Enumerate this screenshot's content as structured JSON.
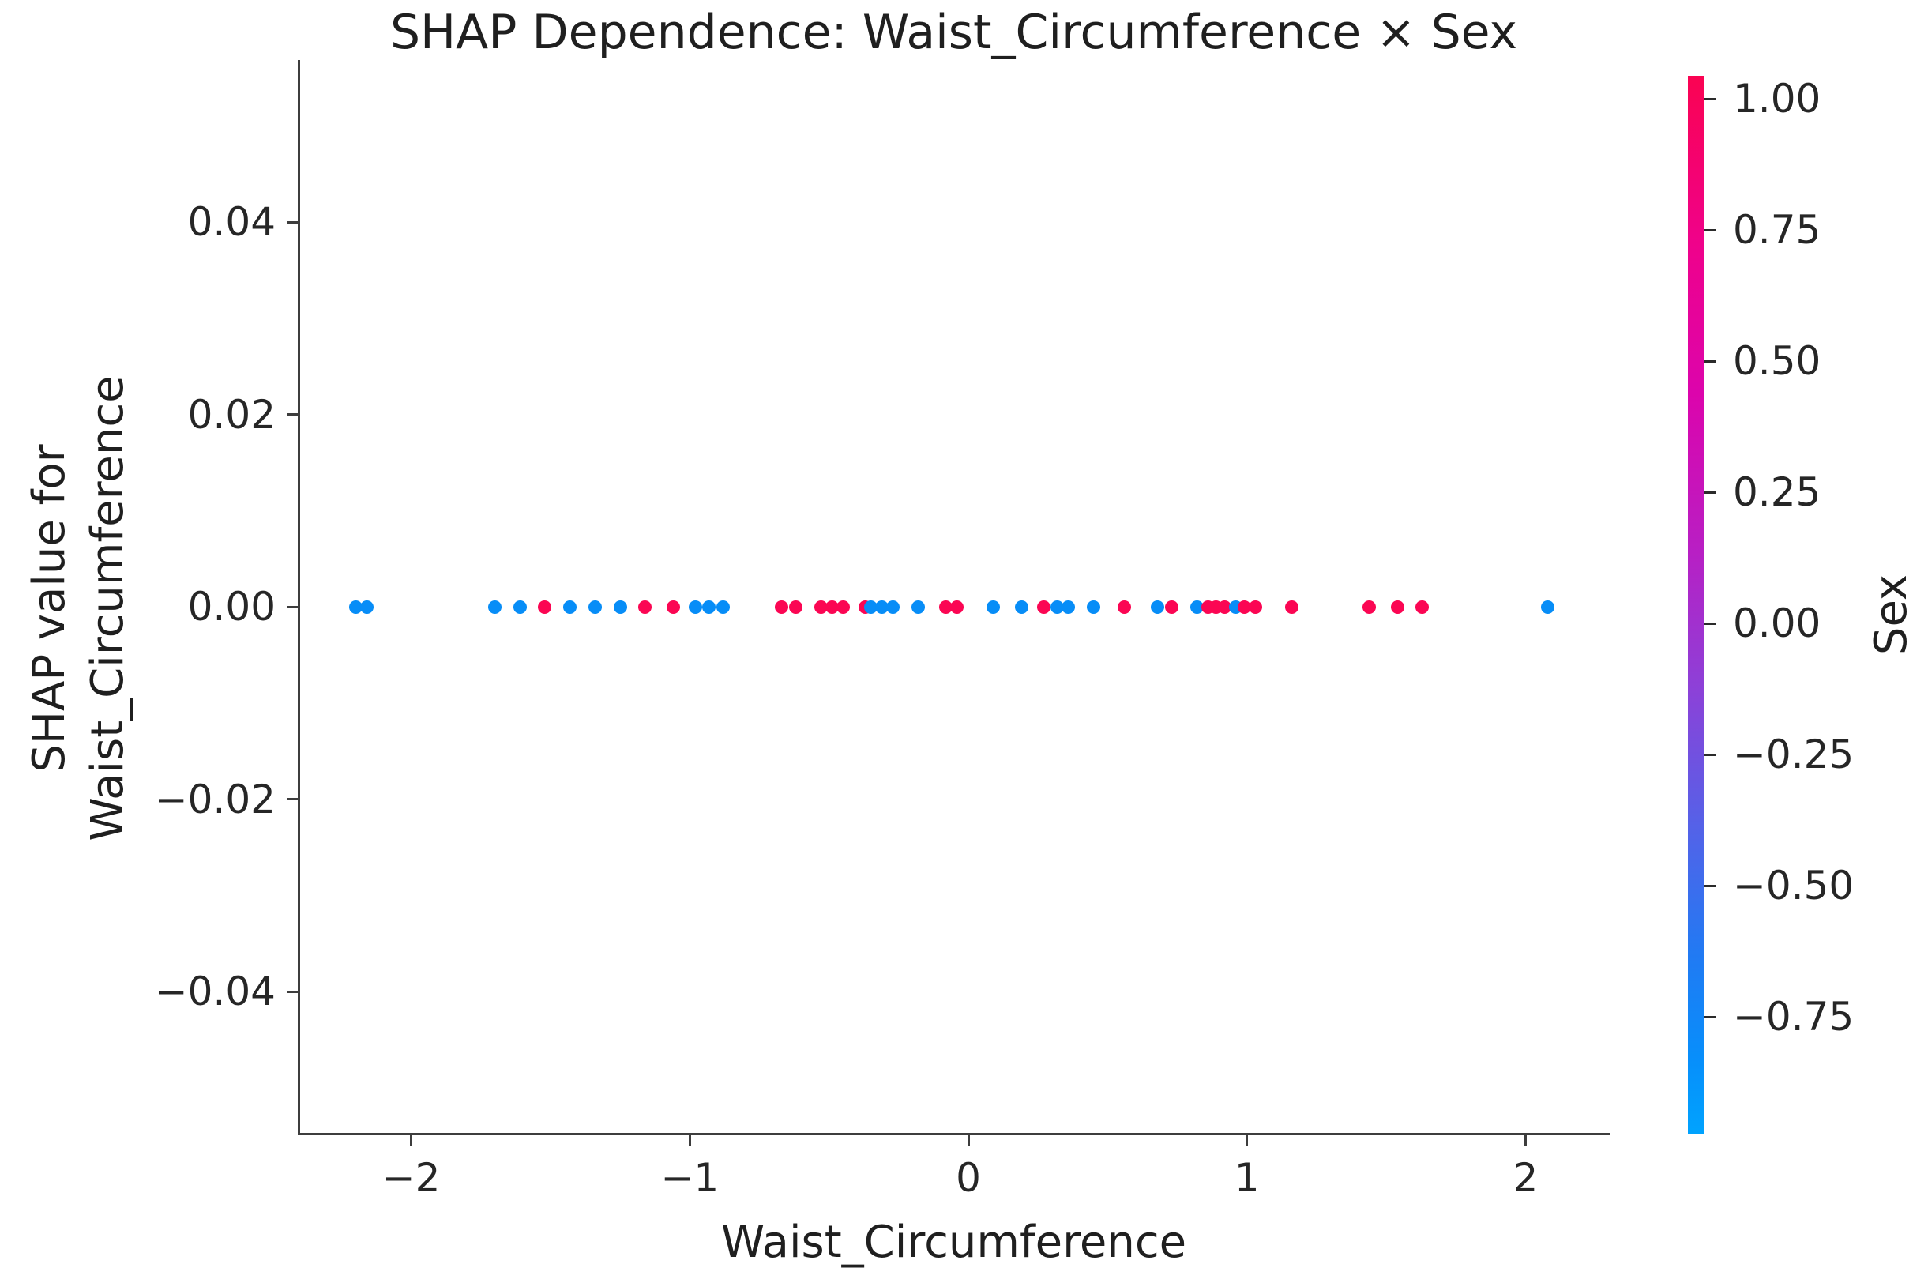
{
  "chart_data": {
    "type": "scatter",
    "title": "SHAP Dependence: Waist_Circumference × Sex",
    "xlabel": "Waist_Circumference",
    "ylabel_lines": [
      "SHAP value for",
      "Waist_Circumference"
    ],
    "x_ticks": [
      -2,
      -1,
      0,
      1,
      2
    ],
    "y_ticks": [
      0.04,
      0.02,
      0.0,
      -0.02,
      -0.04
    ],
    "xlim": [
      -2.41,
      2.3
    ],
    "ylim": [
      -0.055,
      0.057
    ],
    "grid": false,
    "legend": "colorbar-right",
    "marker_colors": {
      "high": "#fb0653",
      "low": "#078df7"
    },
    "colorbar": {
      "label": "Sex",
      "ticks": [
        1.0,
        0.75,
        0.5,
        0.25,
        0.0,
        -0.25,
        -0.5,
        -0.75
      ],
      "vmin": -0.974,
      "vmax": 1.044,
      "gradient_stops": [
        [
          "0%",
          "#fa0352"
        ],
        [
          "16%",
          "#ef028b"
        ],
        [
          "30%",
          "#dc04ac"
        ],
        [
          "45%",
          "#b81fc4"
        ],
        [
          "58%",
          "#8c41d8"
        ],
        [
          "71%",
          "#5462e8"
        ],
        [
          "83%",
          "#217af3"
        ],
        [
          "93%",
          "#078ffb"
        ],
        [
          "100%",
          "#00a3fe"
        ]
      ]
    },
    "points": [
      {
        "x": -2.2,
        "y": 0.0,
        "sex": -0.97
      },
      {
        "x": -2.16,
        "y": 0.0,
        "sex": -0.97
      },
      {
        "x": -1.7,
        "y": 0.0,
        "sex": -0.97
      },
      {
        "x": -1.61,
        "y": 0.0,
        "sex": -0.97
      },
      {
        "x": -1.52,
        "y": 0.0,
        "sex": 1.03
      },
      {
        "x": -1.43,
        "y": 0.0,
        "sex": -0.97
      },
      {
        "x": -1.34,
        "y": 0.0,
        "sex": -0.97
      },
      {
        "x": -1.25,
        "y": 0.0,
        "sex": -0.97
      },
      {
        "x": -1.16,
        "y": 0.0,
        "sex": 1.03
      },
      {
        "x": -1.06,
        "y": 0.0,
        "sex": 1.03
      },
      {
        "x": -0.98,
        "y": 0.0,
        "sex": -0.97
      },
      {
        "x": -0.93,
        "y": 0.0,
        "sex": -0.97
      },
      {
        "x": -0.88,
        "y": 0.0,
        "sex": -0.97
      },
      {
        "x": -0.67,
        "y": 0.0,
        "sex": 1.03
      },
      {
        "x": -0.62,
        "y": 0.0,
        "sex": 1.03
      },
      {
        "x": -0.53,
        "y": 0.0,
        "sex": 1.03
      },
      {
        "x": -0.49,
        "y": 0.0,
        "sex": 1.03
      },
      {
        "x": -0.45,
        "y": 0.0,
        "sex": 1.03
      },
      {
        "x": -0.37,
        "y": 0.0,
        "sex": 1.03
      },
      {
        "x": -0.35,
        "y": 0.0,
        "sex": -0.97
      },
      {
        "x": -0.31,
        "y": 0.0,
        "sex": -0.97
      },
      {
        "x": -0.27,
        "y": 0.0,
        "sex": -0.97
      },
      {
        "x": -0.18,
        "y": 0.0,
        "sex": -0.97
      },
      {
        "x": -0.08,
        "y": 0.0,
        "sex": 1.03
      },
      {
        "x": -0.04,
        "y": 0.0,
        "sex": 1.03
      },
      {
        "x": 0.09,
        "y": 0.0,
        "sex": -0.97
      },
      {
        "x": 0.19,
        "y": 0.0,
        "sex": -0.97
      },
      {
        "x": 0.27,
        "y": 0.0,
        "sex": 1.03
      },
      {
        "x": 0.32,
        "y": 0.0,
        "sex": -0.97
      },
      {
        "x": 0.36,
        "y": 0.0,
        "sex": -0.97
      },
      {
        "x": 0.45,
        "y": 0.0,
        "sex": -0.97
      },
      {
        "x": 0.56,
        "y": 0.0,
        "sex": 1.03
      },
      {
        "x": 0.68,
        "y": 0.0,
        "sex": -0.97
      },
      {
        "x": 0.73,
        "y": 0.0,
        "sex": 1.03
      },
      {
        "x": 0.82,
        "y": 0.0,
        "sex": -0.97
      },
      {
        "x": 0.86,
        "y": 0.0,
        "sex": 1.03
      },
      {
        "x": 0.89,
        "y": 0.0,
        "sex": 1.03
      },
      {
        "x": 0.92,
        "y": 0.0,
        "sex": 1.03
      },
      {
        "x": 0.96,
        "y": 0.0,
        "sex": -0.97
      },
      {
        "x": 0.99,
        "y": 0.0,
        "sex": 1.03
      },
      {
        "x": 1.03,
        "y": 0.0,
        "sex": 1.03
      },
      {
        "x": 1.16,
        "y": 0.0,
        "sex": 1.03
      },
      {
        "x": 1.44,
        "y": 0.0,
        "sex": 1.03
      },
      {
        "x": 1.54,
        "y": 0.0,
        "sex": 1.03
      },
      {
        "x": 1.63,
        "y": 0.0,
        "sex": 1.03
      },
      {
        "x": 2.08,
        "y": 0.0,
        "sex": -0.97
      }
    ]
  }
}
